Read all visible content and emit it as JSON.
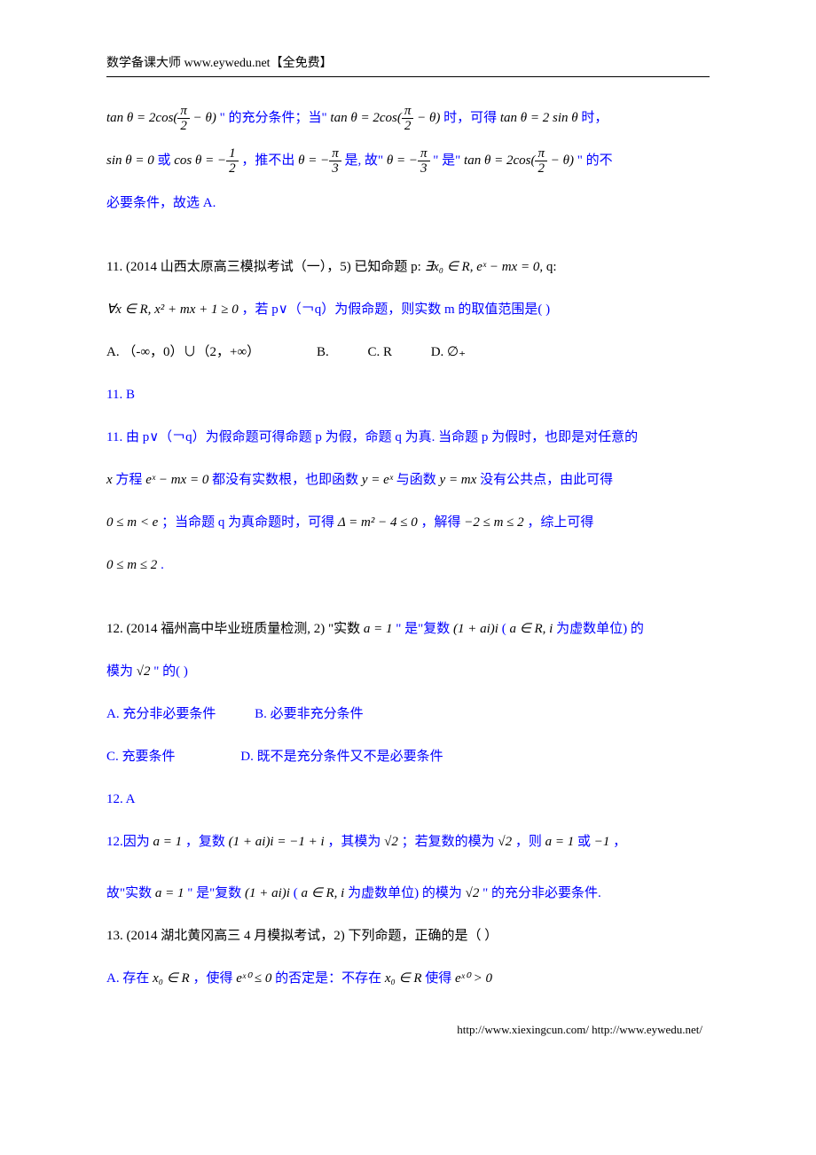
{
  "header": "数学备课大师  www.eywedu.net【全免费】",
  "footer": "http://www.xiexingcun.com/ http://www.eywedu.net/",
  "colors": {
    "link": "#0000ff",
    "text": "#000000",
    "bg": "#ffffff"
  },
  "line1": {
    "eq1": "tan θ = 2cos(",
    "frac_pi_2_theta": {
      "num": "π",
      "den": "2"
    },
    "eq1_tail": " − θ)",
    "t1": " \" 的充分条件；当\"  ",
    "eq2_head": "tan θ = 2cos(",
    "eq2_tail": " − θ)",
    "t2": " 时，可得 ",
    "eq3": "tan θ = 2 sin θ",
    "t3": " 时，"
  },
  "line2": {
    "eq1": "sin θ = 0",
    "t1": " 或 ",
    "eq2_head": "cos θ = −",
    "frac_1_2": {
      "num": "1",
      "den": "2"
    },
    "t2": "，推不出 ",
    "eq3_head": "θ = −",
    "frac_pi_3": {
      "num": "π",
      "den": "3"
    },
    "t3": " 是, 故\" ",
    "eq4_head": "θ = −",
    "t4": " \" 是\" ",
    "eq5_head": "tan θ = 2cos(",
    "eq5_tail": " − θ)",
    "t5": " \" 的不"
  },
  "line3": "必要条件，故选 A.",
  "q11": {
    "stem1": "11. (2014 山西太原高三模拟考试（一），5)  已知命题 p:  ",
    "eqp": "∃x₀ ∈ R, eˣ − mx = 0,",
    "stem1b": " q:",
    "eqq": "∀x ∈ R, x² + mx + 1 ≥ 0",
    "stem2": "，若 p∨（￢q）为假命题，则实数 m 的取值范围是(    )",
    "choices": {
      "A": "A. （-∞，0）∪（2，+∞）",
      "B": "B.",
      "C": "C. R",
      "D": "D. ∅₊"
    },
    "ans": " 11.  B",
    "sol_l1_a": " 11.  由 p∨（￢q）为假命题可得命题 p 为假，命题 q 为真.  当命题 p 为假时，也即是对任意的",
    "sol_l2_a": "x",
    "sol_l2_b": " 方程 ",
    "sol_eq1": "eˣ − mx = 0",
    "sol_l2_c": " 都没有实数根，也即函数 ",
    "sol_eq2": "y = eˣ",
    "sol_l2_d": " 与函数 ",
    "sol_eq3": "y = mx",
    "sol_l2_e": " 没有公共点，由此可得",
    "sol_l3_eq1": "0 ≤ m < e",
    "sol_l3_a": "；当命题 q 为真命题时，可得 ",
    "sol_l3_eq2": "Δ = m² − 4 ≤ 0",
    "sol_l3_b": "，解得 ",
    "sol_l3_eq3": "−2 ≤ m ≤ 2",
    "sol_l3_c": "，综上可得",
    "sol_l4": "0 ≤ m ≤ 2",
    "sol_l4_tail": "."
  },
  "q12": {
    "stem_a": "12. (2014 福州高中毕业班质量检测, 2) \"实数 ",
    "eq_a1": "a = 1",
    "stem_b": " \"  是\"复数 ",
    "eq_c": "(1 + ai)i",
    "stem_c": " ( ",
    "eq_set": "a ∈ R, i",
    "stem_d": " 为虚数单位)  的",
    "stem_e": "模为 ",
    "eq_sqrt2": "√2",
    "stem_f": " \" 的(    )",
    "choices": {
      "A": " A.  充分非必要条件",
      "B": "B.  必要非充分条件",
      "C": " C.  充要条件",
      "D": "D.  既不是充分条件又不是必要条件"
    },
    "ans": " 12.  A",
    "sol_a": " 12.因为 ",
    "sol_eq1": "a = 1",
    "sol_b": "，复数 ",
    "sol_eq2": "(1 + ai)i = −1 + i",
    "sol_c": "，其模为 ",
    "sol_eq3": "√2",
    "sol_d": " ；若复数的模为 ",
    "sol_eq4": "√2",
    "sol_e": " ，则 ",
    "sol_eq5": "a = 1",
    "sol_f": " 或 ",
    "sol_eq6": "−1",
    "sol_g": "，",
    "sol2_a": "故\"实数 ",
    "sol2_eq1": "a = 1",
    "sol2_b": " \"  是\"复数 ",
    "sol2_eq2": "(1 + ai)i",
    "sol2_c": " ( ",
    "sol2_eq3": "a ∈ R, i",
    "sol2_d": " 为虚数单位)  的模为 ",
    "sol2_eq4": "√2",
    "sol2_e": " \" 的充分非必要条件."
  },
  "q13": {
    "stem": "13. (2014 湖北黄冈高三 4 月模拟考试，2)  下列命题，正确的是（     ）",
    "A_a": "A.  存在 ",
    "A_eq1": "x₀ ∈ R",
    "A_b": " ，使得 ",
    "A_eq2": "eˣ⁰ ≤ 0",
    "A_c": " 的否定是：不存在 ",
    "A_eq3": "x₀ ∈ R",
    "A_d": " 使得 ",
    "A_eq4": "eˣ⁰ > 0"
  }
}
